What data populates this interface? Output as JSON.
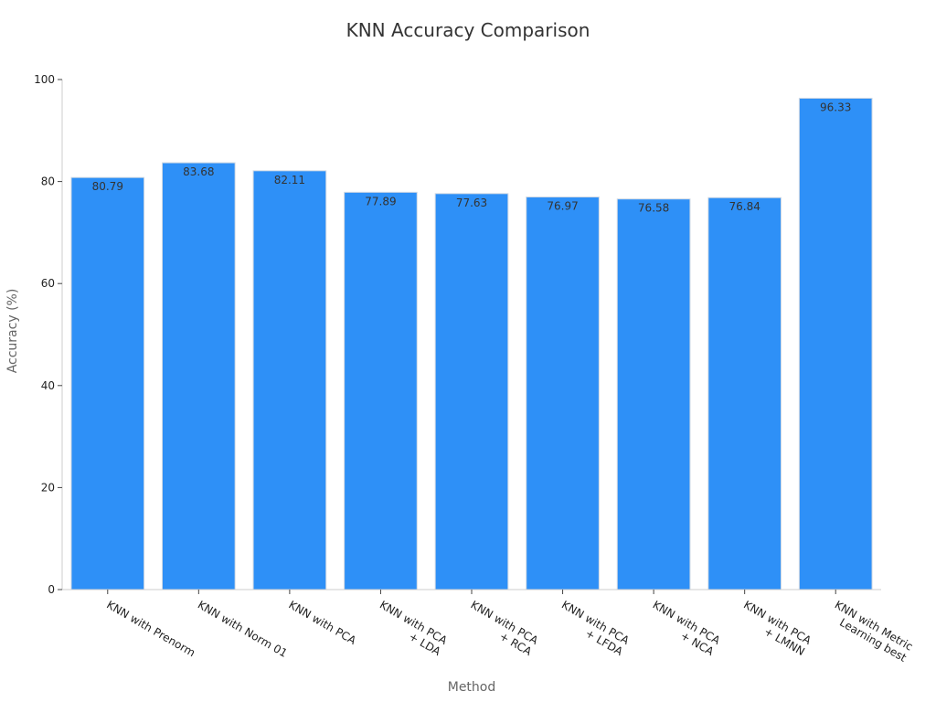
{
  "chart_data": {
    "type": "bar",
    "title": "KNN Accuracy Comparison",
    "xlabel": "Method",
    "ylabel": "Accuracy (%)",
    "categories": [
      [
        "KNN with Prenorm"
      ],
      [
        "KNN with Norm 01"
      ],
      [
        "KNN with PCA"
      ],
      [
        "KNN with PCA",
        "+ LDA"
      ],
      [
        "KNN with PCA",
        "+ RCA"
      ],
      [
        "KNN with PCA",
        "+ LFDA"
      ],
      [
        "KNN with PCA",
        "+ NCA"
      ],
      [
        "KNN with PCA",
        "+ LMNN"
      ],
      [
        "KNN with Metric",
        "Learning best"
      ]
    ],
    "values": [
      80.79,
      83.68,
      82.11,
      77.89,
      77.63,
      76.97,
      76.58,
      76.84,
      96.33
    ],
    "data_labels": [
      "80.79",
      "83.68",
      "82.11",
      "77.89",
      "77.63",
      "76.97",
      "76.58",
      "76.84",
      "96.33"
    ],
    "ylim": [
      0,
      100
    ],
    "yticks": [
      0,
      20,
      40,
      60,
      80,
      100
    ],
    "bar_color": "#2e90f7",
    "grid": false,
    "legend": "none"
  }
}
